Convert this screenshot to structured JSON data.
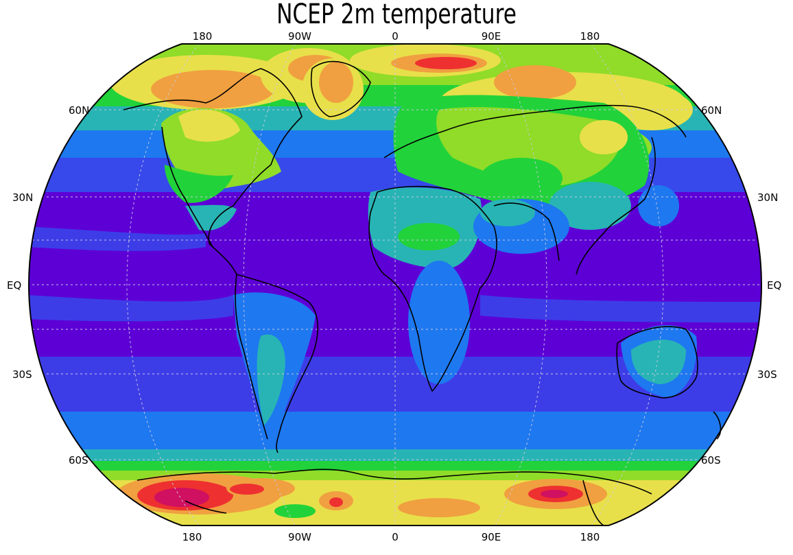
{
  "title": "NCEP 2m temperature",
  "colors": {
    "ocean_deep": "#5d00d6",
    "ocean_mid": "#3d3de8",
    "ocean_cool": "#1e78f0",
    "teal": "#28b4b4",
    "green": "#22d23a",
    "lime": "#90dc28",
    "yellow": "#e8e04a",
    "orange": "#f0a040",
    "red": "#ee3030",
    "magenta": "#d01060"
  },
  "axis_labels": {
    "top": [
      "180",
      "90W",
      "0",
      "90E",
      "180"
    ],
    "bottom": [
      "180",
      "90W",
      "0",
      "90E",
      "180"
    ],
    "left": [
      "60N",
      "30N",
      "EQ",
      "30S",
      "60S"
    ],
    "right": [
      "60N",
      "30N",
      "EQ",
      "30S",
      "60S"
    ]
  }
}
